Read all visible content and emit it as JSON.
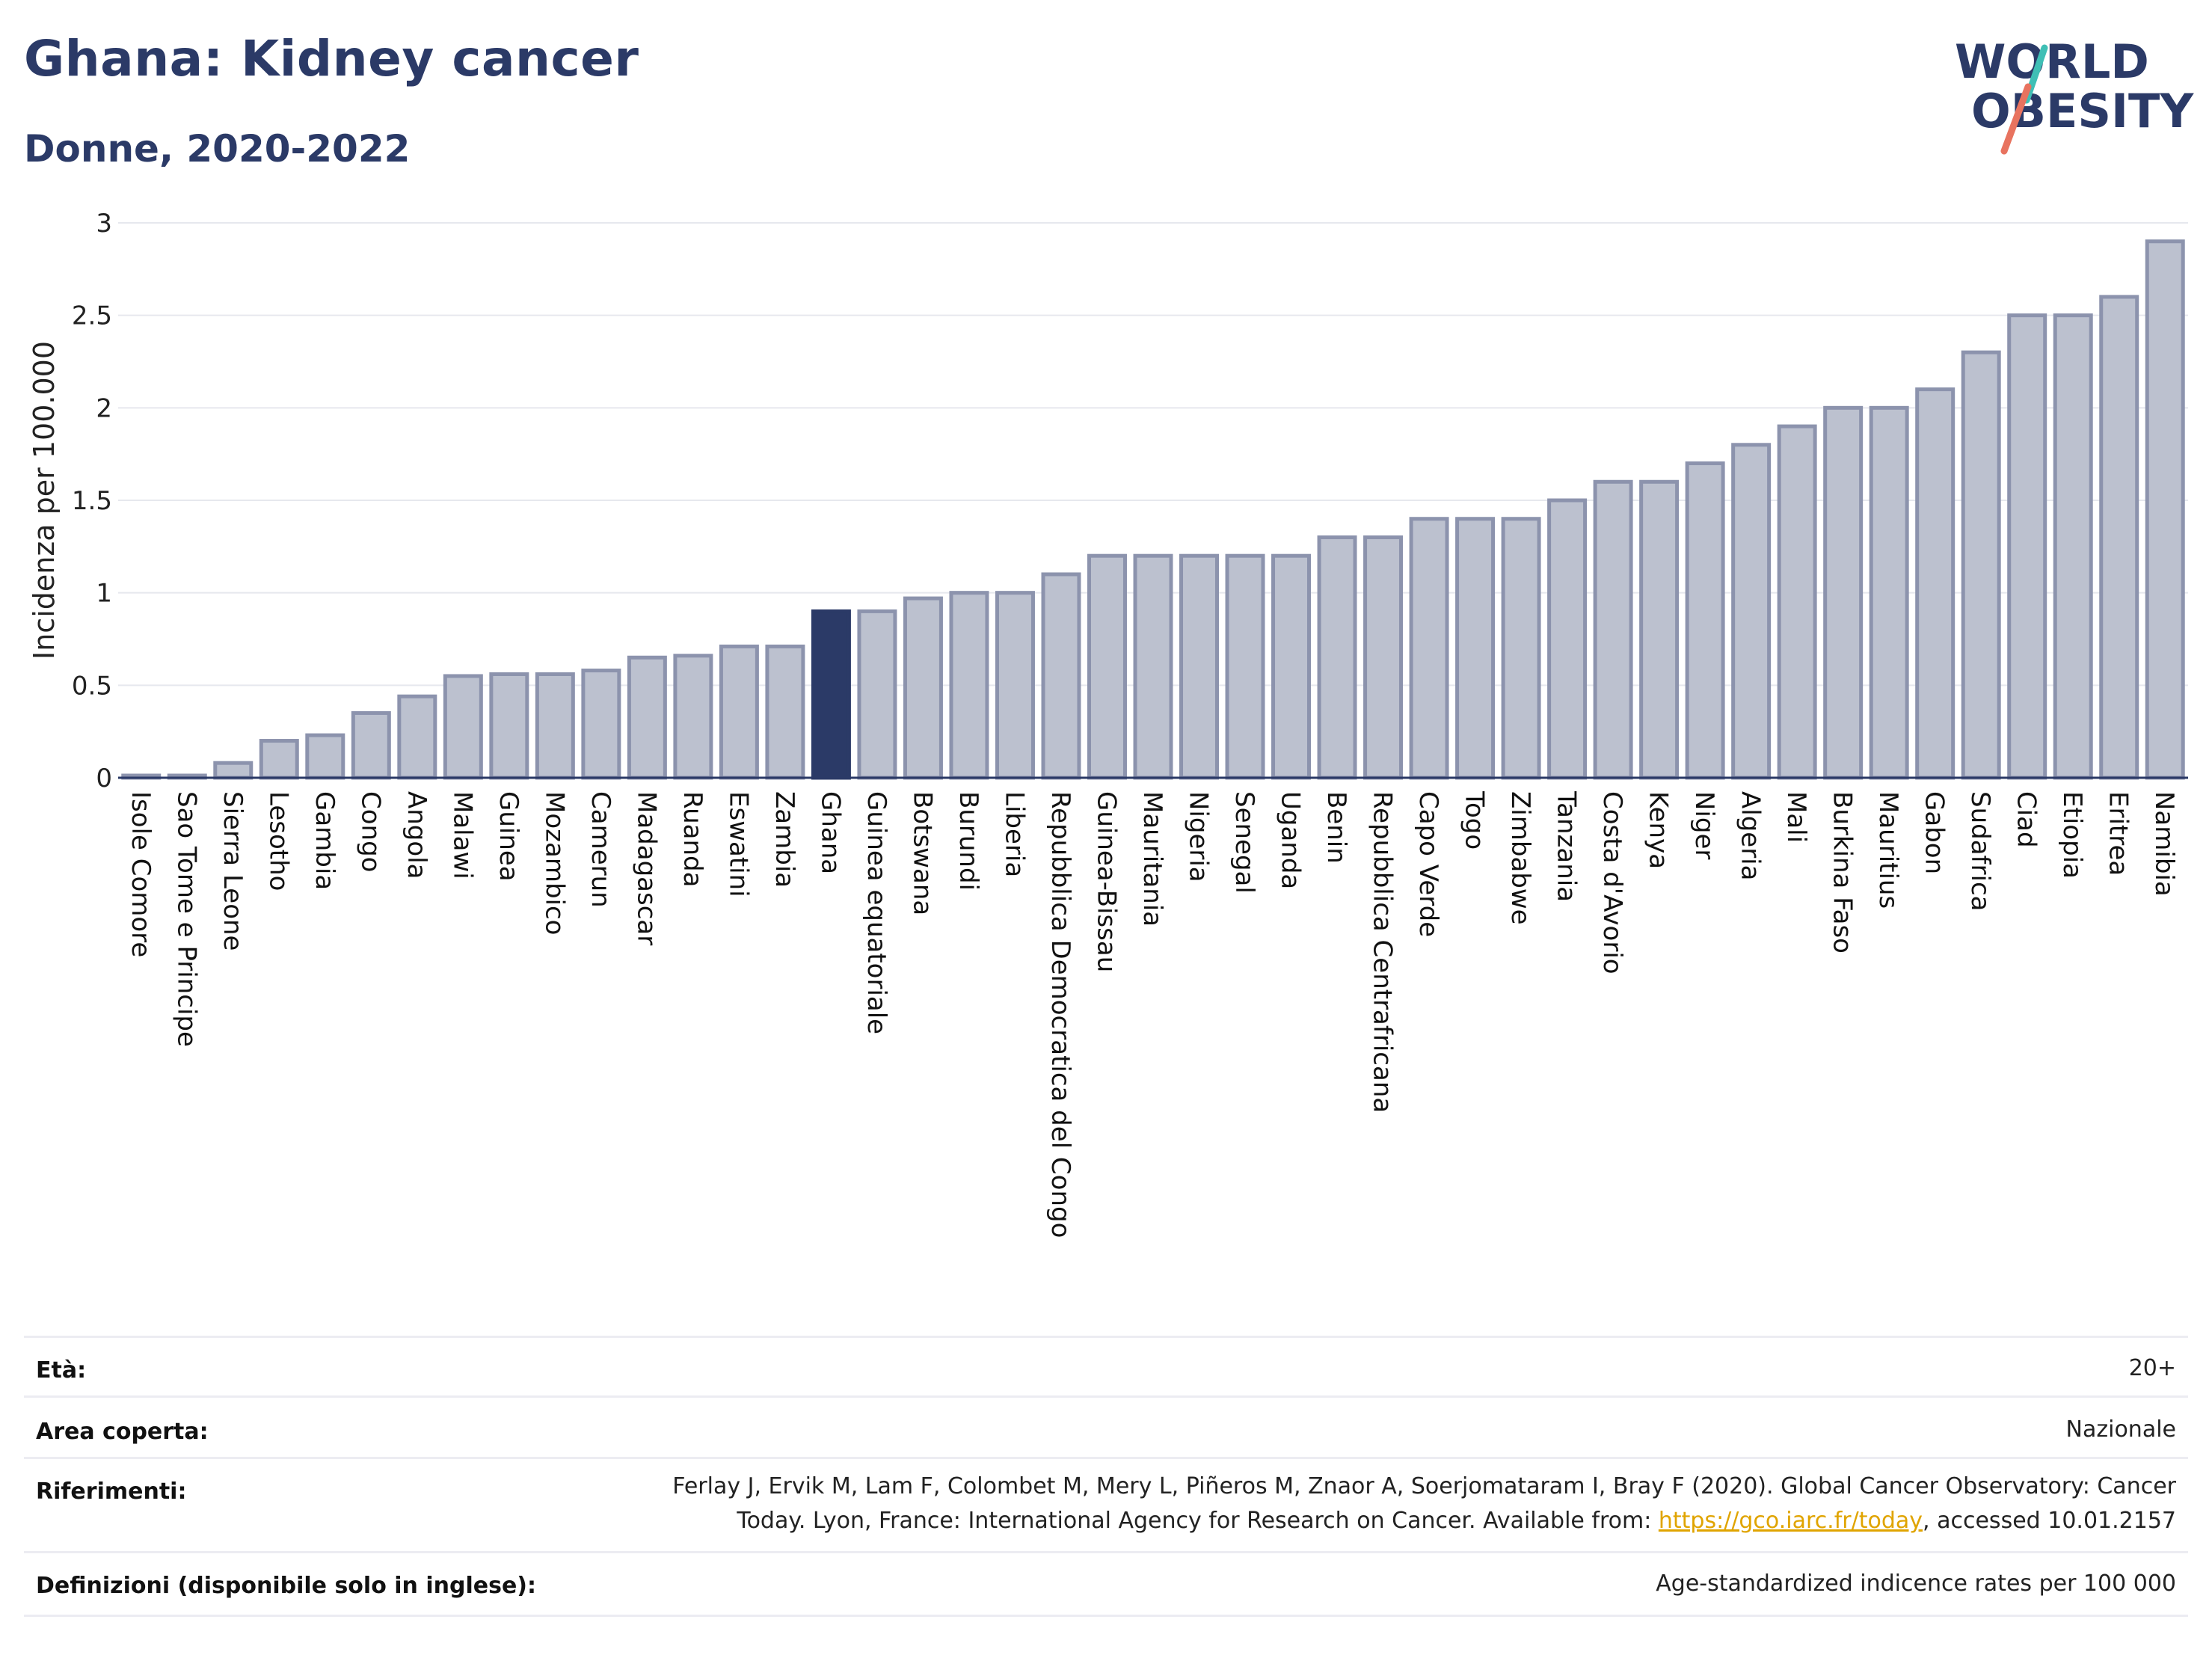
{
  "title": "Ghana: Kidney cancer",
  "subtitle": "Donne, 2020-2022",
  "logo": {
    "line1": "WORLD",
    "line2": "OBESITY"
  },
  "colors": {
    "highlight": "#2b3a67",
    "bar": "#bcc1cf",
    "bar_border": "#8c93ad",
    "title": "#2b3a67",
    "link": "#e0a400"
  },
  "chart_data": {
    "type": "bar",
    "ylabel": "Incidenza per 100.000",
    "ylim": [
      0,
      3
    ],
    "yticks": [
      "0",
      "0.5",
      "1",
      "1.5",
      "2",
      "2.5",
      "3"
    ],
    "highlight": "Ghana",
    "categories": [
      "Isole Comore",
      "Sao Tome e Principe",
      "Sierra Leone",
      "Lesotho",
      "Gambia",
      "Congo",
      "Angola",
      "Malawi",
      "Guinea",
      "Mozambico",
      "Camerun",
      "Madagascar",
      "Ruanda",
      "Eswatini",
      "Zambia",
      "Ghana",
      "Guinea equatoriale",
      "Botswana",
      "Burundi",
      "Liberia",
      "Repubblica Democratica del Congo",
      "Guinea-Bissau",
      "Mauritania",
      "Nigeria",
      "Senegal",
      "Uganda",
      "Benin",
      "Repubblica Centrafricana",
      "Capo Verde",
      "Togo",
      "Zimbabwe",
      "Tanzania",
      "Costa d'Avorio",
      "Kenya",
      "Niger",
      "Algeria",
      "Mali",
      "Burkina Faso",
      "Mauritius",
      "Gabon",
      "Sudafrica",
      "Ciad",
      "Etiopia",
      "Eritrea",
      "Namibia"
    ],
    "values": [
      0.01,
      0.01,
      0.08,
      0.2,
      0.23,
      0.35,
      0.44,
      0.55,
      0.56,
      0.56,
      0.58,
      0.65,
      0.66,
      0.71,
      0.71,
      0.9,
      0.9,
      0.97,
      1.0,
      1.0,
      1.1,
      1.2,
      1.2,
      1.2,
      1.2,
      1.2,
      1.3,
      1.3,
      1.4,
      1.4,
      1.4,
      1.5,
      1.6,
      1.6,
      1.7,
      1.8,
      1.9,
      2.0,
      2.0,
      2.1,
      2.3,
      2.5,
      2.5,
      2.6,
      2.9
    ]
  },
  "meta": {
    "age_label": "Età:",
    "age_value": "20+",
    "area_label": "Area coperta:",
    "area_value": "Nazionale",
    "ref_label": "Riferimenti:",
    "ref_line1": "Ferlay J, Ervik M, Lam F, Colombet M, Mery L, Piñeros M, Znaor A, Soerjomataram I, Bray F (2020). Global Cancer Observatory: Cancer",
    "ref_line2_pre": "Today. Lyon, France: International Agency for Research on Cancer. Available from: ",
    "ref_link": "https://gco.iarc.fr/today",
    "ref_line2_post": ", accessed 10.01.2157",
    "def_label": "Definizioni (disponibile solo in inglese):",
    "def_value": "Age-standardized indicence rates per 100 000"
  }
}
